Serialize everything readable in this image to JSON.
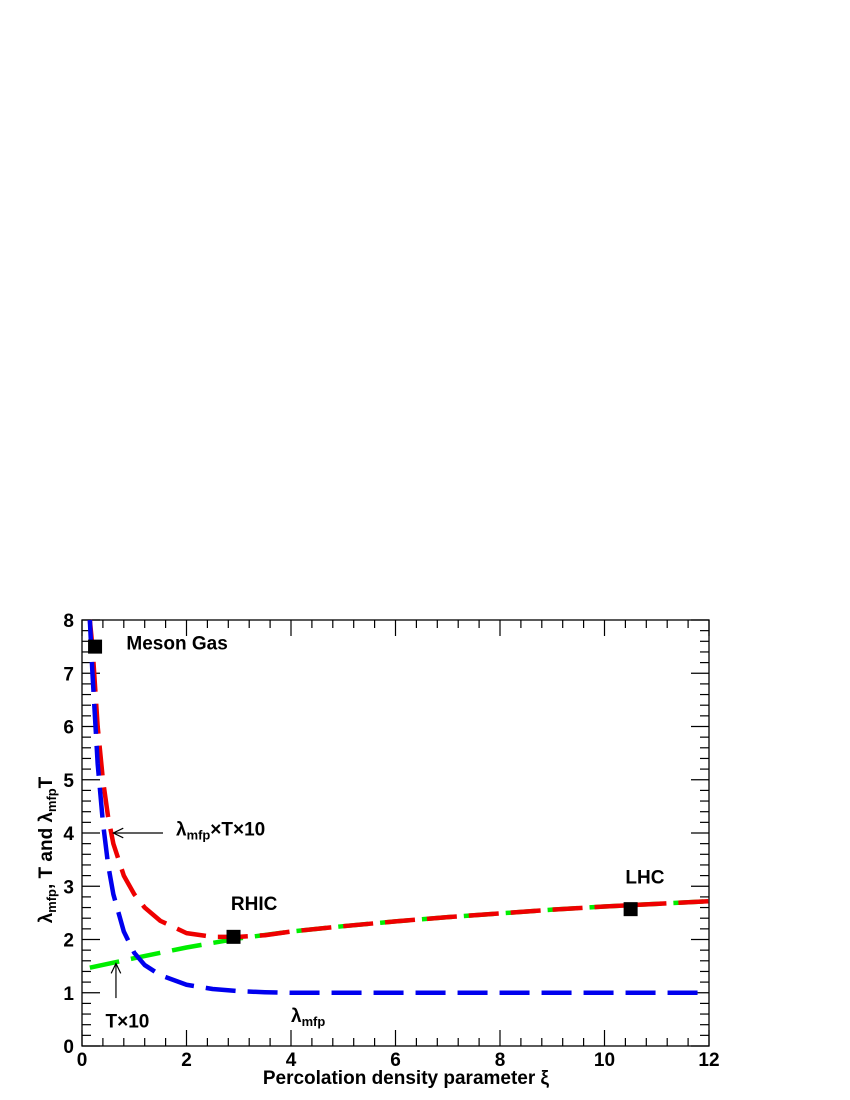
{
  "chart_data": {
    "type": "line",
    "title": "",
    "xlabel": "Percolation density parameter ξ",
    "ylabel": {
      "parts": [
        {
          "text": "λ"
        },
        {
          "text": "mfp",
          "sub": true
        },
        {
          "text": ", T and λ"
        },
        {
          "text": "mfp",
          "sub": true
        },
        {
          "text": "T"
        }
      ]
    },
    "xlim": [
      0,
      12
    ],
    "ylim": [
      0,
      8
    ],
    "x_ticks": [
      0,
      2,
      4,
      6,
      8,
      10,
      12
    ],
    "y_ticks": [
      0,
      1,
      2,
      3,
      4,
      5,
      6,
      7,
      8
    ],
    "grid": false,
    "series": [
      {
        "color": "#00ee00",
        "dash": "long-dash",
        "x": [
          0.15,
          1,
          2,
          3,
          4,
          5,
          6,
          7,
          8,
          9,
          10,
          11,
          12
        ],
        "y": [
          1.47,
          1.65,
          1.85,
          2.02,
          2.15,
          2.25,
          2.34,
          2.42,
          2.49,
          2.56,
          2.62,
          2.67,
          2.72
        ]
      },
      {
        "color": "#ee0000",
        "dash": "long-dash",
        "x": [
          0.15,
          0.2,
          0.3,
          0.4,
          0.5,
          0.6,
          0.8,
          1.0,
          1.2,
          1.5,
          2.0,
          2.5,
          3.0,
          3.5,
          4,
          5,
          6,
          7,
          8,
          9,
          10,
          11,
          12
        ],
        "y": [
          8.0,
          7.5,
          6.0,
          5.0,
          4.3,
          3.8,
          3.2,
          2.85,
          2.6,
          2.35,
          2.12,
          2.05,
          2.05,
          2.08,
          2.15,
          2.25,
          2.34,
          2.42,
          2.49,
          2.56,
          2.62,
          2.67,
          2.72
        ]
      },
      {
        "color": "#0000ee",
        "dash": "long-dash",
        "x": [
          0.15,
          0.2,
          0.3,
          0.4,
          0.5,
          0.6,
          0.8,
          1.0,
          1.2,
          1.5,
          2.0,
          2.5,
          3.0,
          3.5,
          4,
          5,
          6,
          7,
          8,
          9,
          10,
          11,
          12
        ],
        "y": [
          8.0,
          7.0,
          5.3,
          4.2,
          3.4,
          2.85,
          2.15,
          1.75,
          1.52,
          1.33,
          1.15,
          1.07,
          1.03,
          1.01,
          1.0,
          1.0,
          1.0,
          1.0,
          1.0,
          1.0,
          1.0,
          1.0,
          1.0
        ]
      }
    ],
    "markers": [
      {
        "x": 0.25,
        "y": 7.5
      },
      {
        "x": 2.9,
        "y": 2.05
      },
      {
        "x": 10.5,
        "y": 2.57
      }
    ],
    "annotations": [
      {
        "id": "meson-gas",
        "text": "Meson Gas",
        "x": 0.85,
        "y": 7.45
      },
      {
        "id": "rhic",
        "text": "RHIC",
        "x": 2.85,
        "y": 2.55
      },
      {
        "id": "lhc",
        "text": "LHC",
        "x": 10.4,
        "y": 3.05
      },
      {
        "id": "lambda-T10",
        "parts": [
          {
            "text": "λ"
          },
          {
            "text": "mfp",
            "sub": true
          },
          {
            "text": "×T×10"
          }
        ],
        "x": 1.8,
        "y": 3.95
      },
      {
        "id": "T10",
        "text": "T×10",
        "x": 0.45,
        "y": 0.35
      },
      {
        "id": "lambda",
        "parts": [
          {
            "text": "λ"
          },
          {
            "text": "mfp",
            "sub": true
          }
        ],
        "x": 4.0,
        "y": 0.45
      }
    ],
    "arrows": [
      {
        "from": [
          1.55,
          4.0
        ],
        "to": [
          0.6,
          4.0
        ]
      },
      {
        "from": [
          0.65,
          0.9
        ],
        "to": [
          0.65,
          1.55
        ]
      }
    ]
  }
}
